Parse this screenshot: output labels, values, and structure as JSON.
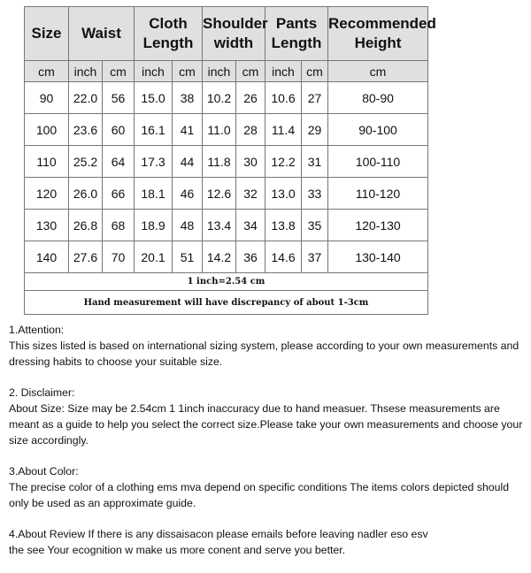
{
  "headers": [
    "Size",
    "Waist",
    "Cloth Length",
    "Shoulder width",
    "Pants Length",
    "Recommended Height"
  ],
  "units": [
    "cm",
    "inch",
    "cm",
    "inch",
    "cm",
    "inch",
    "cm",
    "inch",
    "cm",
    "cm"
  ],
  "rows": [
    [
      "90",
      "22.0",
      "56",
      "15.0",
      "38",
      "10.2",
      "26",
      "10.6",
      "27",
      "80-90"
    ],
    [
      "100",
      "23.6",
      "60",
      "16.1",
      "41",
      "11.0",
      "28",
      "11.4",
      "29",
      "90-100"
    ],
    [
      "110",
      "25.2",
      "64",
      "17.3",
      "44",
      "11.8",
      "30",
      "12.2",
      "31",
      "100-110"
    ],
    [
      "120",
      "26.0",
      "66",
      "18.1",
      "46",
      "12.6",
      "32",
      "13.0",
      "33",
      "110-120"
    ],
    [
      "130",
      "26.8",
      "68",
      "18.9",
      "48",
      "13.4",
      "34",
      "13.8",
      "35",
      "120-130"
    ],
    [
      "140",
      "27.6",
      "70",
      "20.1",
      "51",
      "14.2",
      "36",
      "14.6",
      "37",
      "130-140"
    ]
  ],
  "conversion": "1 inch=2.54 cm",
  "discrepancy": "Hand measurement will have discrepancy of about 1-3cm",
  "notes": [
    {
      "title": "1.Attention:",
      "body": "This sizes listed is based on international sizing system, please according to your own measurements and dressing   habits to choose your suitable size."
    },
    {
      "title": "2. Disclaimer:",
      "body": "About Size: Size may be 2.54cm 1 1inch inaccuracy due to hand measuer. Thsese measurements are meant as a   guide to help you select the correct size.Please take your own measurements and choose your size accordingly."
    },
    {
      "title": "3.About Color:",
      "body": "The precise color of a clothing ems mva depend on specific conditions The items colors depicted should only be   used as an approximate guide."
    },
    {
      "title": "4.About Review If there is any dissaisacon please emails before leaving nadler eso esv",
      "body": "the see Your ecognition w  make us more conent and serve you better."
    }
  ]
}
